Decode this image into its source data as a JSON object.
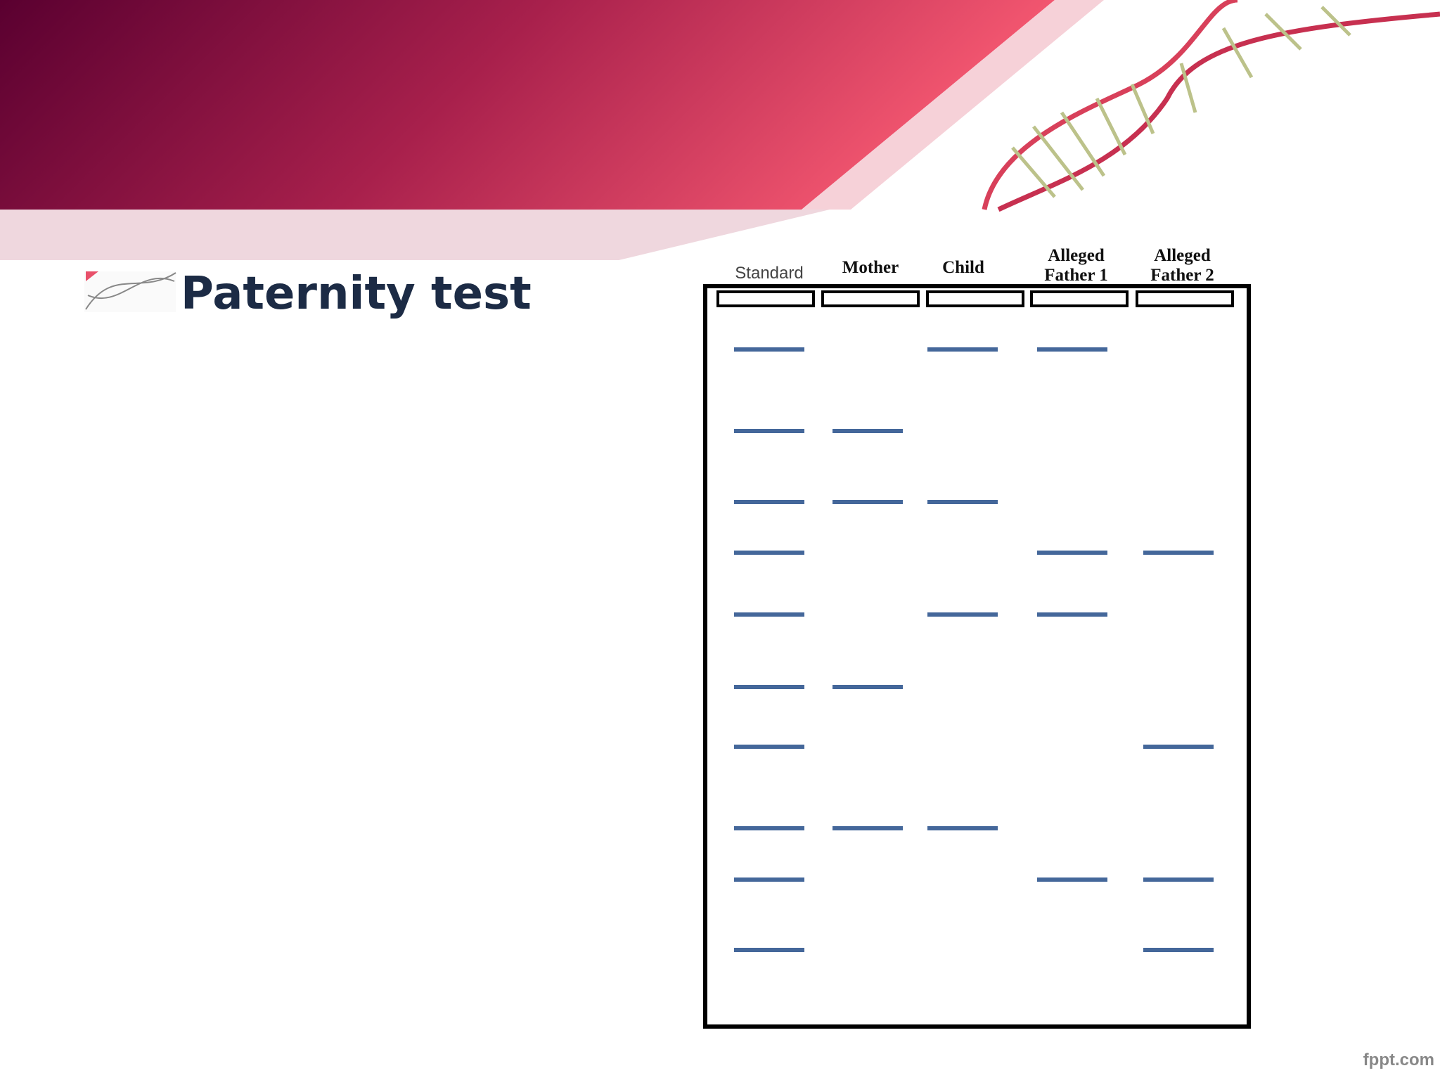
{
  "slide": {
    "title": "Paternity test",
    "lanes": [
      {
        "label": "Standard"
      },
      {
        "label": "Mother"
      },
      {
        "label": "Child"
      },
      {
        "label": "Alleged Father 1"
      },
      {
        "label": "Alleged Father 2"
      }
    ],
    "footer": "fppt.com"
  }
}
